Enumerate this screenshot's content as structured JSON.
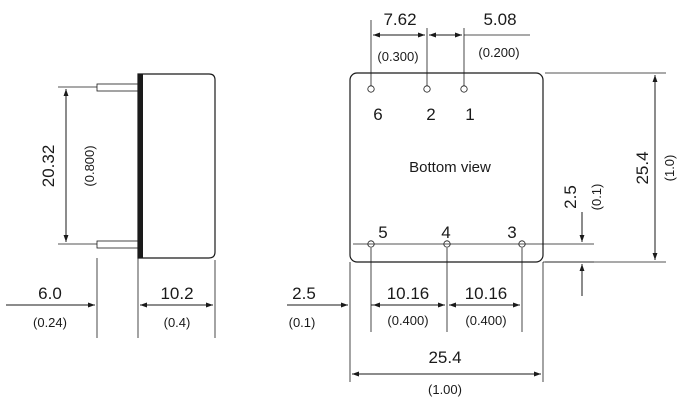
{
  "side_view": {
    "height_mm": "20.32",
    "height_in": "(0.800)",
    "pin_length_mm": "6.0",
    "pin_length_in": "(0.24)",
    "body_depth_mm": "10.2",
    "body_depth_in": "(0.4)"
  },
  "bottom_view": {
    "caption": "Bottom view",
    "pins": [
      "6",
      "2",
      "1",
      "5",
      "4",
      "3"
    ],
    "top_pitch_1_mm": "7.62",
    "top_pitch_1_in": "(0.300)",
    "top_pitch_2_mm": "5.08",
    "top_pitch_2_in": "(0.200)",
    "height_mm": "25.4",
    "height_in": "(1.0)",
    "row_offset_mm": "2.5",
    "row_offset_in": "(0.1)",
    "edge_offset_mm": "2.5",
    "edge_offset_in": "(0.1)",
    "bottom_pitch_1_mm": "10.16",
    "bottom_pitch_1_in": "(0.400)",
    "bottom_pitch_2_mm": "10.16",
    "bottom_pitch_2_in": "(0.400)",
    "width_mm": "25.4",
    "width_in": "(1.00)"
  }
}
